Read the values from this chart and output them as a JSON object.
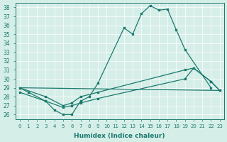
{
  "xlabel": "Humidex (Indice chaleur)",
  "ylabel": "",
  "bg_color": "#d6eee8",
  "line_color": "#1a7a6e",
  "xlim": [
    -0.5,
    23.5
  ],
  "ylim": [
    25.5,
    38.5
  ],
  "yticks": [
    26,
    27,
    28,
    29,
    30,
    31,
    32,
    33,
    34,
    35,
    36,
    37,
    38
  ],
  "xticks": [
    0,
    1,
    2,
    3,
    4,
    5,
    6,
    7,
    8,
    9,
    10,
    11,
    12,
    13,
    14,
    15,
    16,
    17,
    18,
    19,
    20,
    21,
    22,
    23
  ],
  "line1_x": [
    0,
    1,
    3,
    4,
    5,
    6,
    7,
    8,
    9,
    12,
    13,
    14,
    15,
    16,
    17,
    18,
    19,
    22
  ],
  "line1_y": [
    29.0,
    28.5,
    27.5,
    26.5,
    26.0,
    26.0,
    27.5,
    28.0,
    29.5,
    35.7,
    35.0,
    37.3,
    38.2,
    37.7,
    37.8,
    35.5,
    33.3,
    29.0
  ],
  "line2_x": [
    0,
    23
  ],
  "line2_y": [
    29.0,
    28.7
  ],
  "line3_x": [
    0,
    3,
    5,
    6,
    7,
    9,
    19,
    20,
    22,
    23
  ],
  "line3_y": [
    29.0,
    28.0,
    27.0,
    27.3,
    28.0,
    28.5,
    31.0,
    31.2,
    29.7,
    28.7
  ],
  "line4_x": [
    0,
    3,
    5,
    6,
    7,
    9,
    19,
    20,
    22,
    23
  ],
  "line4_y": [
    28.5,
    27.5,
    26.8,
    27.0,
    27.3,
    27.8,
    30.0,
    31.2,
    29.7,
    28.7
  ]
}
